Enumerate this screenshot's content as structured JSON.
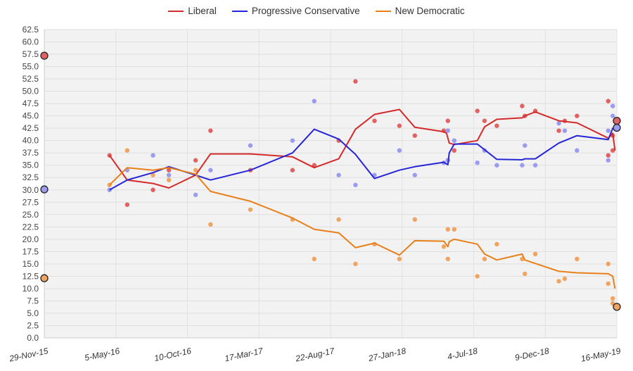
{
  "chart_data": {
    "type": "line",
    "title": "",
    "xlabel": "",
    "ylabel": "",
    "ylim": [
      0,
      62.5
    ],
    "ytick_step": 2.5,
    "xlim": [
      "2015-11-29",
      "2019-05-16"
    ],
    "x_ticks": [
      {
        "date": "2015-11-29",
        "label": "29-Nov-15"
      },
      {
        "date": "2016-05-05",
        "label": "5-May-16"
      },
      {
        "date": "2016-10-10",
        "label": "10-Oct-16"
      },
      {
        "date": "2017-03-17",
        "label": "17-Mar-17"
      },
      {
        "date": "2017-08-22",
        "label": "22-Aug-17"
      },
      {
        "date": "2018-01-27",
        "label": "27-Jan-18"
      },
      {
        "date": "2018-07-04",
        "label": "4-Jul-18"
      },
      {
        "date": "2018-12-09",
        "label": "9-Dec-18"
      },
      {
        "date": "2019-05-16",
        "label": "16-May-19"
      }
    ],
    "grid": true,
    "legend": "top-center",
    "series": [
      {
        "name": "Liberal",
        "color": "#d42a2a",
        "dot_color": "#e06262",
        "result_start": {
          "date": "2015-11-29",
          "value": 57.2
        },
        "result_end": {
          "date": "2019-05-16",
          "value": 44.0
        },
        "trend": [
          [
            "2016-04-21",
            37
          ],
          [
            "2016-05-30",
            32
          ],
          [
            "2016-07-26",
            31.3
          ],
          [
            "2016-08-30",
            30.4
          ],
          [
            "2016-10-28",
            33
          ],
          [
            "2016-11-30",
            37.3
          ],
          [
            "2017-02-26",
            37.3
          ],
          [
            "2017-05-30",
            36.7
          ],
          [
            "2017-07-17",
            34.5
          ],
          [
            "2017-09-09",
            36.3
          ],
          [
            "2017-10-16",
            42.3
          ],
          [
            "2017-11-27",
            45.3
          ],
          [
            "2018-01-21",
            46.3
          ],
          [
            "2018-02-24",
            42.7
          ],
          [
            "2018-04-29",
            41.8
          ],
          [
            "2018-05-05",
            41.5
          ],
          [
            "2018-05-11",
            39.5
          ],
          [
            "2018-05-22",
            39.2
          ],
          [
            "2018-07-12",
            40
          ],
          [
            "2018-07-28",
            42.8
          ],
          [
            "2018-08-24",
            44.3
          ],
          [
            "2018-10-19",
            44.6
          ],
          [
            "2018-10-25",
            45
          ],
          [
            "2018-11-17",
            45.8
          ],
          [
            "2019-01-08",
            44
          ],
          [
            "2019-02-17",
            43.6
          ],
          [
            "2019-04-27",
            40.5
          ],
          [
            "2019-05-07",
            41.5
          ],
          [
            "2019-05-12",
            38
          ]
        ],
        "polls": [
          [
            "2016-04-21",
            37
          ],
          [
            "2016-05-30",
            27
          ],
          [
            "2016-07-26",
            30
          ],
          [
            "2016-08-30",
            34
          ],
          [
            "2016-10-28",
            36
          ],
          [
            "2016-11-30",
            42
          ],
          [
            "2017-02-26",
            34
          ],
          [
            "2017-05-30",
            34
          ],
          [
            "2017-07-17",
            35
          ],
          [
            "2017-09-09",
            40
          ],
          [
            "2017-10-16",
            52
          ],
          [
            "2017-11-27",
            44
          ],
          [
            "2018-01-21",
            43
          ],
          [
            "2018-02-24",
            41
          ],
          [
            "2018-04-29",
            42
          ],
          [
            "2018-05-08",
            44
          ],
          [
            "2018-05-08",
            36
          ],
          [
            "2018-05-22",
            38
          ],
          [
            "2018-07-12",
            46
          ],
          [
            "2018-07-28",
            44
          ],
          [
            "2018-08-24",
            43
          ],
          [
            "2018-10-19",
            47
          ],
          [
            "2018-10-25",
            45
          ],
          [
            "2018-11-17",
            46
          ],
          [
            "2019-01-08",
            42
          ],
          [
            "2019-01-21",
            44
          ],
          [
            "2019-02-17",
            45
          ],
          [
            "2019-04-27",
            48
          ],
          [
            "2019-04-27",
            37
          ],
          [
            "2019-05-07",
            41
          ],
          [
            "2019-05-07",
            38
          ]
        ]
      },
      {
        "name": "Progressive Conservative",
        "color": "#2626d8",
        "dot_color": "#9b9bef",
        "result_start": {
          "date": "2015-11-29",
          "value": 30.1
        },
        "result_end": {
          "date": "2019-05-16",
          "value": 42.6
        },
        "trend": [
          [
            "2016-04-21",
            30
          ],
          [
            "2016-05-30",
            32
          ],
          [
            "2016-07-26",
            33.5
          ],
          [
            "2016-08-30",
            34.7
          ],
          [
            "2016-10-28",
            33
          ],
          [
            "2016-11-30",
            32
          ],
          [
            "2017-02-26",
            34
          ],
          [
            "2017-05-30",
            37.5
          ],
          [
            "2017-07-17",
            42.3
          ],
          [
            "2017-09-09",
            40.3
          ],
          [
            "2017-10-16",
            37.2
          ],
          [
            "2017-11-27",
            32.3
          ],
          [
            "2018-01-21",
            34
          ],
          [
            "2018-02-24",
            34.7
          ],
          [
            "2018-04-29",
            35.6
          ],
          [
            "2018-05-08",
            35.1
          ],
          [
            "2018-05-11",
            37.5
          ],
          [
            "2018-05-22",
            39.3
          ],
          [
            "2018-07-12",
            39.3
          ],
          [
            "2018-08-24",
            36.2
          ],
          [
            "2018-10-19",
            36.1
          ],
          [
            "2018-10-25",
            36.3
          ],
          [
            "2018-11-17",
            36.3
          ],
          [
            "2019-01-08",
            39.5
          ],
          [
            "2019-02-17",
            41
          ],
          [
            "2019-04-27",
            40.2
          ],
          [
            "2019-05-07",
            42.5
          ],
          [
            "2019-05-12",
            42.5
          ]
        ],
        "polls": [
          [
            "2016-04-21",
            30
          ],
          [
            "2016-05-30",
            34
          ],
          [
            "2016-07-26",
            37
          ],
          [
            "2016-08-30",
            33
          ],
          [
            "2016-10-28",
            29
          ],
          [
            "2016-11-30",
            34
          ],
          [
            "2017-02-26",
            39
          ],
          [
            "2017-05-30",
            40
          ],
          [
            "2017-07-17",
            48
          ],
          [
            "2017-09-09",
            33
          ],
          [
            "2017-10-16",
            31
          ],
          [
            "2017-11-27",
            33
          ],
          [
            "2018-01-21",
            38
          ],
          [
            "2018-02-24",
            33
          ],
          [
            "2018-04-29",
            35.5
          ],
          [
            "2018-05-08",
            42
          ],
          [
            "2018-05-08",
            36
          ],
          [
            "2018-05-22",
            40
          ],
          [
            "2018-07-12",
            35.5
          ],
          [
            "2018-07-28",
            38
          ],
          [
            "2018-08-24",
            35
          ],
          [
            "2018-10-19",
            35
          ],
          [
            "2018-10-25",
            39
          ],
          [
            "2018-11-17",
            35
          ],
          [
            "2019-01-08",
            43.5
          ],
          [
            "2019-01-21",
            42
          ],
          [
            "2019-02-17",
            38
          ],
          [
            "2019-04-27",
            36
          ],
          [
            "2019-04-27",
            42
          ],
          [
            "2019-05-07",
            47
          ],
          [
            "2019-05-07",
            45
          ]
        ]
      },
      {
        "name": "New Democratic",
        "color": "#e8801a",
        "dot_color": "#f0a462",
        "result_start": {
          "date": "2015-11-29",
          "value": 12.1
        },
        "result_end": {
          "date": "2019-05-16",
          "value": 6.3
        },
        "trend": [
          [
            "2016-04-21",
            31
          ],
          [
            "2016-05-30",
            34.5
          ],
          [
            "2016-07-26",
            34
          ],
          [
            "2016-08-30",
            34.5
          ],
          [
            "2016-10-28",
            33.2
          ],
          [
            "2016-11-30",
            29.7
          ],
          [
            "2017-02-26",
            27.7
          ],
          [
            "2017-05-30",
            24.3
          ],
          [
            "2017-07-17",
            22
          ],
          [
            "2017-09-09",
            21.3
          ],
          [
            "2017-10-16",
            18.3
          ],
          [
            "2017-11-27",
            19.2
          ],
          [
            "2018-01-21",
            16.8
          ],
          [
            "2018-02-24",
            19.7
          ],
          [
            "2018-04-29",
            19.6
          ],
          [
            "2018-05-08",
            18.5
          ],
          [
            "2018-05-11",
            19.5
          ],
          [
            "2018-05-22",
            20
          ],
          [
            "2018-07-12",
            19
          ],
          [
            "2018-07-28",
            17
          ],
          [
            "2018-08-24",
            15.8
          ],
          [
            "2018-10-19",
            17
          ],
          [
            "2018-10-25",
            15.8
          ],
          [
            "2019-01-08",
            13.5
          ],
          [
            "2019-02-17",
            13.2
          ],
          [
            "2019-04-27",
            13
          ],
          [
            "2019-05-07",
            12.5
          ],
          [
            "2019-05-12",
            10
          ]
        ],
        "polls": [
          [
            "2016-04-21",
            31
          ],
          [
            "2016-05-30",
            38
          ],
          [
            "2016-07-26",
            33
          ],
          [
            "2016-08-30",
            32
          ],
          [
            "2016-10-28",
            34
          ],
          [
            "2016-11-30",
            23
          ],
          [
            "2017-02-26",
            26
          ],
          [
            "2017-05-30",
            24
          ],
          [
            "2017-07-17",
            16
          ],
          [
            "2017-09-09",
            24
          ],
          [
            "2017-10-16",
            15
          ],
          [
            "2017-11-27",
            19
          ],
          [
            "2018-01-21",
            16
          ],
          [
            "2018-02-24",
            24
          ],
          [
            "2018-04-29",
            18.5
          ],
          [
            "2018-05-08",
            22
          ],
          [
            "2018-05-08",
            16
          ],
          [
            "2018-05-22",
            22
          ],
          [
            "2018-07-12",
            12.5
          ],
          [
            "2018-07-28",
            16
          ],
          [
            "2018-08-24",
            19
          ],
          [
            "2018-10-19",
            16
          ],
          [
            "2018-10-25",
            13
          ],
          [
            "2018-11-17",
            17
          ],
          [
            "2019-01-08",
            11.5
          ],
          [
            "2019-01-21",
            12
          ],
          [
            "2019-02-17",
            16
          ],
          [
            "2019-04-27",
            15
          ],
          [
            "2019-04-27",
            11
          ],
          [
            "2019-05-07",
            8
          ],
          [
            "2019-05-07",
            7
          ]
        ]
      }
    ]
  }
}
